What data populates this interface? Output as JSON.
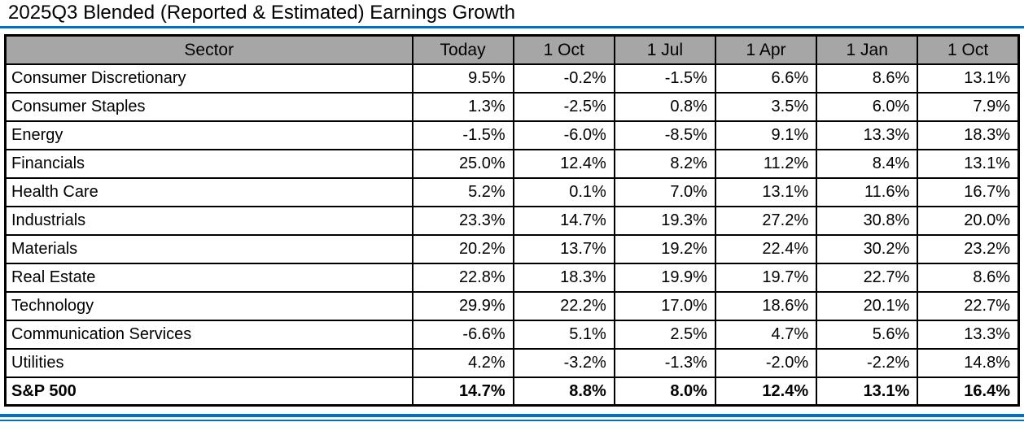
{
  "page_title": "2025Q3 Blended (Reported & Estimated) Earnings Growth",
  "colors": {
    "accent_blue": "#0070c0",
    "header_bg": "#a6a6a6",
    "border_color": "#000000"
  },
  "chart_data": {
    "type": "table",
    "title": "2025Q3 Blended (Reported & Estimated) Earnings Growth",
    "columns": [
      "Sector",
      "Today",
      "1 Oct",
      "1 Jul",
      "1 Apr",
      "1 Jan",
      "1 Oct"
    ],
    "rows": [
      {
        "sector": "Consumer Discretionary",
        "values": [
          "9.5%",
          "-0.2%",
          "-1.5%",
          "6.6%",
          "8.6%",
          "13.1%"
        ],
        "bold": false
      },
      {
        "sector": "Consumer Staples",
        "values": [
          "1.3%",
          "-2.5%",
          "0.8%",
          "3.5%",
          "6.0%",
          "7.9%"
        ],
        "bold": false
      },
      {
        "sector": "Energy",
        "values": [
          "-1.5%",
          "-6.0%",
          "-8.5%",
          "9.1%",
          "13.3%",
          "18.3%"
        ],
        "bold": false
      },
      {
        "sector": "Financials",
        "values": [
          "25.0%",
          "12.4%",
          "8.2%",
          "11.2%",
          "8.4%",
          "13.1%"
        ],
        "bold": false
      },
      {
        "sector": "Health Care",
        "values": [
          "5.2%",
          "0.1%",
          "7.0%",
          "13.1%",
          "11.6%",
          "16.7%"
        ],
        "bold": false
      },
      {
        "sector": "Industrials",
        "values": [
          "23.3%",
          "14.7%",
          "19.3%",
          "27.2%",
          "30.8%",
          "20.0%"
        ],
        "bold": false
      },
      {
        "sector": "Materials",
        "values": [
          "20.2%",
          "13.7%",
          "19.2%",
          "22.4%",
          "30.2%",
          "23.2%"
        ],
        "bold": false
      },
      {
        "sector": "Real Estate",
        "values": [
          "22.8%",
          "18.3%",
          "19.9%",
          "19.7%",
          "22.7%",
          "8.6%"
        ],
        "bold": false
      },
      {
        "sector": "Technology",
        "values": [
          "29.9%",
          "22.2%",
          "17.0%",
          "18.6%",
          "20.1%",
          "22.7%"
        ],
        "bold": false
      },
      {
        "sector": "Communication Services",
        "values": [
          "-6.6%",
          "5.1%",
          "2.5%",
          "4.7%",
          "5.6%",
          "13.3%"
        ],
        "bold": false
      },
      {
        "sector": "Utilities",
        "values": [
          "4.2%",
          "-3.2%",
          "-1.3%",
          "-2.0%",
          "-2.2%",
          "14.8%"
        ],
        "bold": false
      },
      {
        "sector": "S&P 500",
        "values": [
          "14.7%",
          "8.8%",
          "8.0%",
          "12.4%",
          "13.1%",
          "16.4%"
        ],
        "bold": true
      }
    ]
  }
}
